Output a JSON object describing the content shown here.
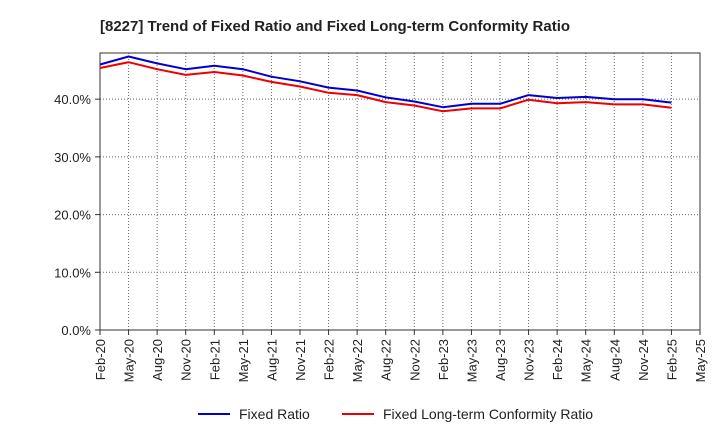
{
  "chart_data": {
    "type": "line",
    "title": "[8227]  Trend of Fixed Ratio and Fixed Long-term Conformity Ratio",
    "xlabel": "",
    "ylabel": "",
    "categories": [
      "Feb-20",
      "May-20",
      "Aug-20",
      "Nov-20",
      "Feb-21",
      "May-21",
      "Aug-21",
      "Nov-21",
      "Feb-22",
      "May-22",
      "Aug-22",
      "Nov-22",
      "Feb-23",
      "May-23",
      "Aug-23",
      "Nov-23",
      "Feb-24",
      "May-24",
      "Aug-24",
      "Nov-24",
      "Feb-25",
      "May-25"
    ],
    "ylim": [
      0,
      48
    ],
    "yticks": [
      0,
      10,
      20,
      30,
      40
    ],
    "ytick_labels": [
      "0.0%",
      "10.0%",
      "20.0%",
      "30.0%",
      "40.0%"
    ],
    "grid": true,
    "legend_position": "bottom",
    "series": [
      {
        "name": "Fixed Ratio",
        "color": "#0000cc",
        "values": [
          46.0,
          47.4,
          46.2,
          45.2,
          45.8,
          45.2,
          43.9,
          43.1,
          42.0,
          41.5,
          40.3,
          39.6,
          38.6,
          39.2,
          39.2,
          40.7,
          40.2,
          40.4,
          40.0,
          40.0,
          39.4,
          null
        ]
      },
      {
        "name": "Fixed Long-term Conformity Ratio",
        "color": "#ee0000",
        "values": [
          45.4,
          46.4,
          45.2,
          44.2,
          44.7,
          44.1,
          43.0,
          42.2,
          41.1,
          40.7,
          39.5,
          38.9,
          37.9,
          38.4,
          38.4,
          39.9,
          39.3,
          39.5,
          39.1,
          39.1,
          38.5,
          null
        ]
      }
    ]
  }
}
